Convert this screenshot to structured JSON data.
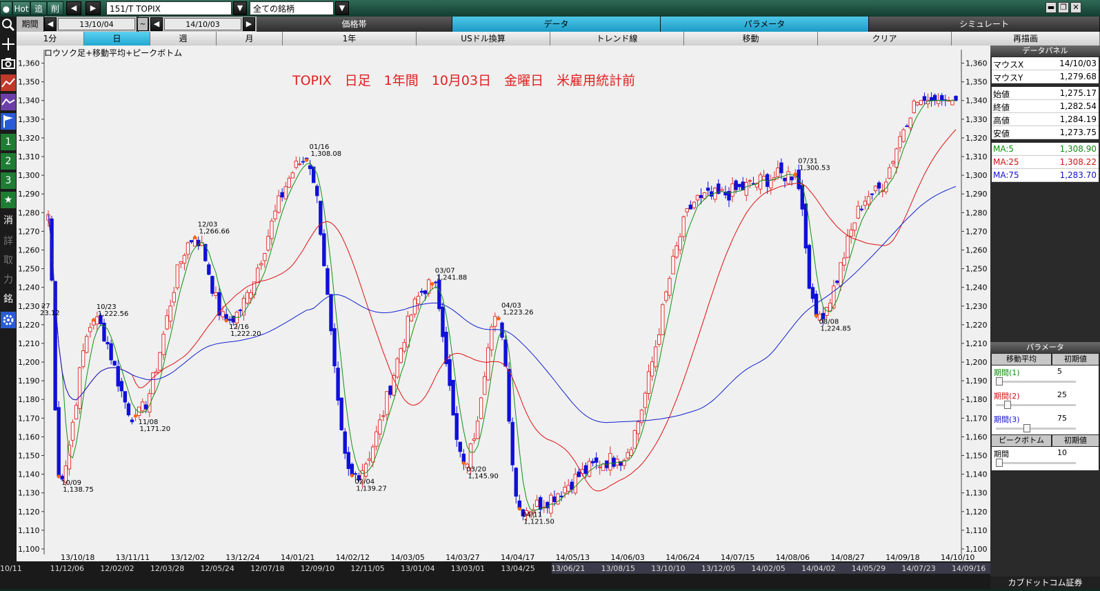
{
  "topbar": {
    "hot": "Hot",
    "tsui": "追",
    "sakujo": "削",
    "symbol": "151/T TOPIX",
    "filter": "全ての銘柄",
    "dropdown": "▼",
    "prev": "◀",
    "next": "▶",
    "minimize": "▬",
    "restore": "❐",
    "close": "✕"
  },
  "row2": {
    "period_label": "期間",
    "from_date": "13/10/04",
    "tilde": "~",
    "to_date": "14/10/03",
    "tabs": [
      "価格帯",
      "データ",
      "パラメータ",
      "シミュレート"
    ]
  },
  "row3": {
    "items": [
      "1分",
      "日",
      "週",
      "月",
      "1年",
      "USドル換算",
      "トレンド線",
      "移動",
      "クリア",
      "再描画"
    ]
  },
  "left_toolbar": {
    "labels": [
      "1",
      "2",
      "3",
      "★",
      "消",
      "詳",
      "取",
      "力",
      "銘"
    ]
  },
  "chart": {
    "indicator_label": "ロウソク足+移動平均+ピークボトム",
    "title": "TOPIX　日足　1年間　10月03日　金曜日　米雇用統計前"
  },
  "chart_data": {
    "type": "candlestick",
    "title": "TOPIX　日足　1年間　10月03日　金曜日　米雇用統計前",
    "ylim": [
      1100,
      1365
    ],
    "y_ticks": [
      "1,100",
      "1,110",
      "1,120",
      "1,130",
      "1,140",
      "1,150",
      "1,160",
      "1,170",
      "1,180",
      "1,190",
      "1,200",
      "1,210",
      "1,220",
      "1,230",
      "1,240",
      "1,250",
      "1,260",
      "1,270",
      "1,280",
      "1,290",
      "1,300",
      "1,310",
      "1,320",
      "1,330",
      "1,340",
      "1,350",
      "1,360"
    ],
    "x_labels_top": [
      "13/10/18",
      "13/11/11",
      "13/12/02",
      "13/12/24",
      "14/01/21",
      "14/02/12",
      "14/03/05",
      "14/03/27",
      "14/04/17",
      "14/05/13",
      "14/06/03",
      "14/06/24",
      "14/07/15",
      "14/08/06",
      "14/08/27",
      "14/09/18",
      "14/10/10"
    ],
    "x_labels_bottom": [
      "10/11",
      "11/12/06",
      "12/02/02",
      "12/03/28",
      "12/05/24",
      "12/07/18",
      "12/09/10",
      "12/11/05",
      "13/01/04",
      "13/03/01",
      "13/04/25",
      "13/06/21",
      "13/08/15",
      "13/10/10",
      "13/12/05",
      "14/02/05",
      "14/04/02",
      "14/05/29",
      "14/07/23",
      "14/09/16"
    ],
    "anchors": [
      {
        "date": "10/09",
        "value": 1138.75,
        "text": "1,138.75"
      },
      {
        "date": "10/23",
        "value": 1222.56,
        "text": "1,222.56"
      },
      {
        "date": "11/08",
        "value": 1171.2,
        "text": "1,171.20"
      },
      {
        "date": "12/03",
        "value": 1266.66,
        "text": "1,266.66"
      },
      {
        "date": "12/16",
        "value": 1222.2,
        "text": "1,222.20"
      },
      {
        "date": "01/16",
        "value": 1308.08,
        "text": "1,308.08"
      },
      {
        "date": "02/04",
        "value": 1139.27,
        "text": "1,139.27"
      },
      {
        "date": "03/07",
        "value": 1241.88,
        "text": "1,241.88"
      },
      {
        "date": "03/20",
        "value": 1145.9,
        "text": "1,145.90"
      },
      {
        "date": "04/03",
        "value": 1223.26,
        "text": "1,223.26"
      },
      {
        "date": "04/11",
        "value": 1121.5,
        "text": "1,121.50"
      },
      {
        "date": "05/21",
        "value": 1148
      },
      {
        "date": "06/24",
        "value": 1288
      },
      {
        "date": "07/31",
        "value": 1300.53,
        "text": "1,300.53"
      },
      {
        "date": "08/08",
        "value": 1224.85,
        "text": "1,224.85"
      },
      {
        "date": "09/01",
        "value": 1290
      },
      {
        "date": "09/19",
        "value": 1340
      },
      {
        "date": "10/03",
        "value": 1279
      }
    ],
    "partial_left_label": {
      "date": "27",
      "text": "23.12"
    },
    "ma5_end": 1308.9,
    "ma25_end": 1308.22,
    "ma75_end": 1283.7,
    "colors": {
      "up": "#e03030",
      "down": "#1010d8",
      "ma5": "#109010",
      "ma25": "#e01010",
      "ma75": "#1020d0",
      "peak": "#ff6600"
    }
  },
  "data_panel": {
    "title": "データパネル",
    "rows": [
      {
        "label": "マウスX",
        "value": "14/10/03"
      },
      {
        "label": "マウスY",
        "value": "1,279.68"
      },
      {
        "label": "始値",
        "value": "1,275.17"
      },
      {
        "label": "終値",
        "value": "1,282.54"
      },
      {
        "label": "高値",
        "value": "1,284.19"
      },
      {
        "label": "安値",
        "value": "1,273.75"
      },
      {
        "label": "MA:5",
        "value": "1,308.90"
      },
      {
        "label": "MA:25",
        "value": "1,308.22"
      },
      {
        "label": "MA:75",
        "value": "1,283.70"
      }
    ]
  },
  "param_panel": {
    "title": "パラメータ",
    "ma_label": "移動平均",
    "init_label": "初期値",
    "periods": [
      {
        "label": "期間",
        "num": "(1)",
        "value": "5",
        "color": "#0a8a0a"
      },
      {
        "label": "期間",
        "num": "(2)",
        "value": "25",
        "color": "#d01010"
      },
      {
        "label": "期間",
        "num": "(3)",
        "value": "75",
        "color": "#1010d0"
      }
    ],
    "peak_label": "ピークボトム",
    "peak_init": "初期値",
    "peak_period_label": "期間",
    "peak_period_value": "10"
  },
  "logo": "カブドットコム証券"
}
